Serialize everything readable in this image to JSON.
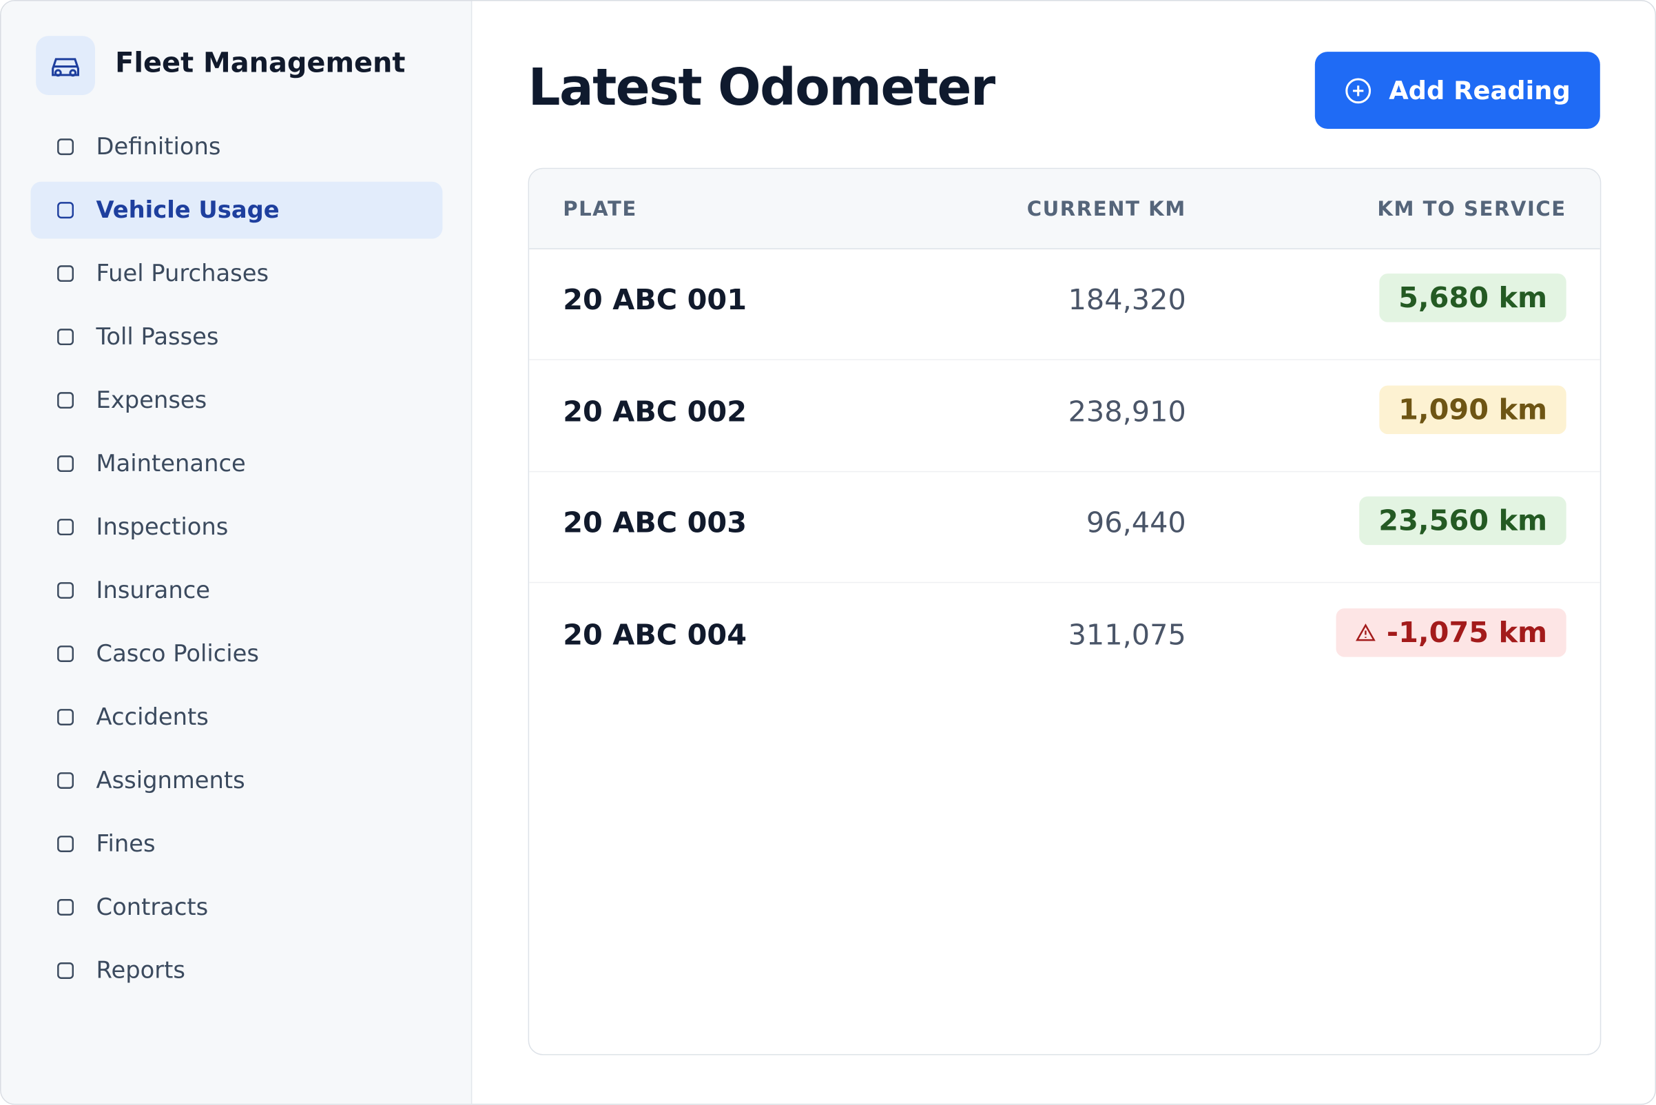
{
  "sidebar": {
    "brand": "Fleet Management",
    "items": [
      "Definitions",
      "Vehicle Usage",
      "Fuel Purchases",
      "Toll Passes",
      "Expenses",
      "Maintenance",
      "Inspections",
      "Insurance",
      "Casco Policies",
      "Accidents",
      "Assignments",
      "Fines",
      "Contracts",
      "Reports"
    ]
  },
  "header": {
    "title": "Latest Odometer",
    "button": "Add Reading"
  },
  "table": {
    "columns": [
      "PLATE",
      "CURRENT KM",
      "KM TO SERVICE"
    ],
    "rows": [
      [
        "20 ABC 001",
        "184,320",
        "5,680 km"
      ],
      [
        "20 ABC 002",
        "238,910",
        "1,090 km"
      ],
      [
        "20 ABC 003",
        "96,440",
        "23,560 km"
      ],
      [
        "20 ABC 004",
        "311,075",
        "-1,075 km"
      ]
    ]
  }
}
